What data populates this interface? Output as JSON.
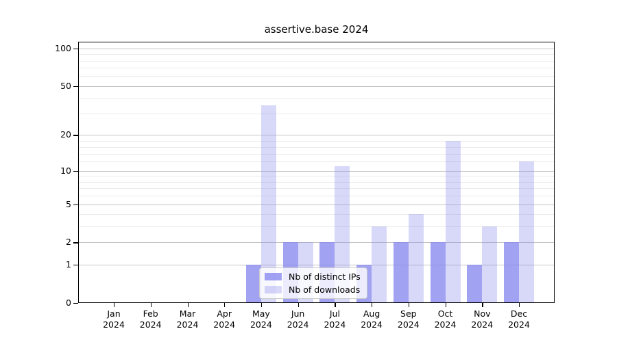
{
  "chart_data": {
    "type": "bar",
    "title": "assertive.base 2024",
    "categories": [
      "Jan 2024",
      "Feb 2024",
      "Mar 2024",
      "Apr 2024",
      "May 2024",
      "Jun 2024",
      "Jul 2024",
      "Aug 2024",
      "Sep 2024",
      "Oct 2024",
      "Nov 2024",
      "Dec 2024"
    ],
    "series": [
      {
        "name": "Nb of distinct IPs",
        "color": "rgba(136,136,238,0.78)",
        "values": [
          0,
          0,
          0,
          0,
          1,
          2,
          2,
          1,
          2,
          2,
          1,
          2
        ]
      },
      {
        "name": "Nb of downloads",
        "color": "rgba(136,136,238,0.33)",
        "values": [
          0,
          0,
          0,
          0,
          35,
          2,
          11,
          3,
          4,
          18,
          3,
          12
        ]
      }
    ],
    "yscale": "log1p",
    "ylim": [
      0,
      113
    ],
    "y_major_ticks": [
      0,
      1,
      2,
      5,
      10,
      20,
      50,
      100
    ],
    "y_minor_ticks": [
      3,
      4,
      6,
      7,
      8,
      9,
      12,
      14,
      16,
      18,
      30,
      40,
      60,
      70,
      80,
      90
    ],
    "grid": true,
    "legend_position": "lower center inside plot"
  },
  "colors": {
    "major_grid": "#c3c3c3",
    "minor_grid": "#eaeaea",
    "spine": "#000000",
    "background": "#ffffff"
  }
}
